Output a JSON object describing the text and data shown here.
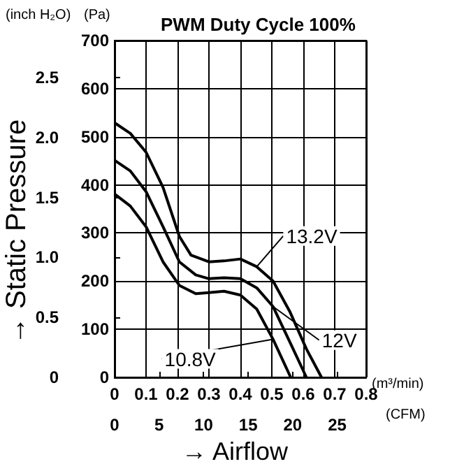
{
  "chart_data": {
    "type": "line",
    "title": "PWM Duty Cycle 100%",
    "xlabel": "→ Airflow",
    "ylabel": "→ Static Pressure",
    "annotations": [
      "(inch H₂O)",
      "(Pa)",
      "(m³/min)",
      "(CFM)"
    ],
    "series": [
      {
        "name": "13.2V",
        "color": "#000000",
        "axis": "y2",
        "x": [
          0,
          0.05,
          0.1,
          0.154,
          0.206,
          0.243,
          0.3,
          0.348,
          0.4,
          0.452,
          0.504,
          0.557,
          0.61,
          0.658
        ],
        "values": [
          529,
          507,
          468,
          395,
          293,
          254,
          240,
          242,
          246,
          230,
          200,
          137,
          59,
          0
        ]
      },
      {
        "name": "12V",
        "color": "#000000",
        "axis": "y2",
        "x": [
          0,
          0.05,
          0.1,
          0.154,
          0.206,
          0.258,
          0.3,
          0.348,
          0.4,
          0.452,
          0.504,
          0.557,
          0.61
        ],
        "values": [
          451,
          429,
          386,
          313,
          240,
          213,
          205,
          207,
          205,
          186,
          147,
          74,
          0
        ]
      },
      {
        "name": "10.8V",
        "color": "#000000",
        "axis": "y2",
        "x": [
          0,
          0.05,
          0.1,
          0.154,
          0.206,
          0.258,
          0.3,
          0.348,
          0.4,
          0.452,
          0.504,
          0.56
        ],
        "values": [
          381,
          356,
          313,
          240,
          191,
          174,
          176,
          179,
          171,
          142,
          79,
          0
        ]
      }
    ],
    "xlim": [
      0,
      0.8
    ],
    "xticks": [
      0,
      0.1,
      0.2,
      0.3,
      0.4,
      0.5,
      0.6,
      0.7,
      0.8
    ],
    "ylim": [
      0,
      2.81
    ],
    "yticks": [
      0,
      {
        "value": 0.5,
        "label": "0.5"
      },
      {
        "value": 1,
        "label": "1.0"
      },
      {
        "value": 1.5,
        "label": "1.5"
      },
      {
        "value": 2,
        "label": "2.0"
      },
      {
        "value": 2.5,
        "label": "2.5"
      }
    ],
    "y2lim": [
      0,
      700
    ],
    "y2ticks": [
      0,
      100,
      200,
      300,
      400,
      500,
      600,
      700
    ],
    "x2lim": [
      0,
      28.25
    ],
    "x2ticks": [
      0,
      5,
      10,
      15,
      20,
      25
    ],
    "grid": true,
    "legend": false,
    "marker": "none",
    "line_style": "solid"
  }
}
